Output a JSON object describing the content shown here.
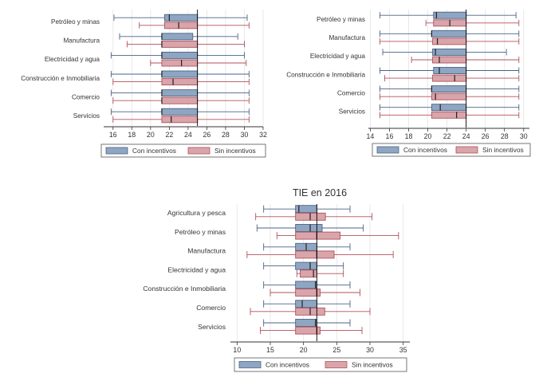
{
  "colors": {
    "con_fill": "#8fa6c3",
    "con_stroke": "#4a6384",
    "sin_fill": "#d8a5ab",
    "sin_stroke": "#b3505b",
    "axis": "#333333",
    "grid": "#e4e4e4",
    "ref_line": "#000000",
    "title": "#333333"
  },
  "chart_data": [
    {
      "type": "box",
      "title": "",
      "xlim": [
        15,
        32
      ],
      "ticks": [
        16,
        18,
        20,
        22,
        24,
        26,
        28,
        30,
        32
      ],
      "ref_line": 25,
      "legend": [
        "Con incentivos",
        "Sin incentivos"
      ],
      "categories": [
        "Petróleo y minas",
        "Manufactura",
        "Electricidad y agua",
        "Construcción e Inmobiliaria",
        "Comercio",
        "Servicios"
      ],
      "series": [
        {
          "name": "Con incentivos",
          "boxes": [
            {
              "min": 16.1,
              "q1": 21.5,
              "median": 22.0,
              "q3": 25.0,
              "max": 30.3
            },
            {
              "min": 16.7,
              "q1": 21.2,
              "median": 21.2,
              "q3": 24.5,
              "max": 29.3
            },
            {
              "min": 15.8,
              "q1": 21.2,
              "median": 21.2,
              "q3": 25.0,
              "max": 30.0
            },
            {
              "min": 15.8,
              "q1": 21.2,
              "median": 21.2,
              "q3": 25.0,
              "max": 30.5
            },
            {
              "min": 15.8,
              "q1": 21.2,
              "median": 21.2,
              "q3": 25.0,
              "max": 30.5
            },
            {
              "min": 15.8,
              "q1": 21.2,
              "median": 21.2,
              "q3": 25.0,
              "max": 30.5
            }
          ]
        },
        {
          "name": "Sin incentivos",
          "boxes": [
            {
              "min": 18.8,
              "q1": 21.5,
              "median": 23.0,
              "q3": 25.0,
              "max": 30.5
            },
            {
              "min": 17.5,
              "q1": 21.2,
              "median": 21.2,
              "q3": 25.0,
              "max": 30.0
            },
            {
              "min": 20.0,
              "q1": 21.2,
              "median": 23.3,
              "q3": 25.0,
              "max": 30.2
            },
            {
              "min": 16.0,
              "q1": 21.2,
              "median": 22.4,
              "q3": 25.0,
              "max": 30.5
            },
            {
              "min": 16.0,
              "q1": 21.2,
              "median": 21.2,
              "q3": 25.0,
              "max": 30.5
            },
            {
              "min": 16.0,
              "q1": 21.2,
              "median": 22.2,
              "q3": 25.0,
              "max": 30.5
            }
          ]
        }
      ]
    },
    {
      "type": "box",
      "title": "",
      "xlim": [
        13.8,
        30.6
      ],
      "ticks": [
        14,
        16,
        18,
        20,
        22,
        24,
        26,
        28,
        30
      ],
      "ref_line": 24,
      "legend": [
        "Con incentivos",
        "Sin incentivos"
      ],
      "categories": [
        "Petróleo y minas",
        "Manufactura",
        "Electricidad y agua",
        "Construcción e Inmobiliaria",
        "Comercio",
        "Servicios"
      ],
      "series": [
        {
          "name": "Con incentivos",
          "boxes": [
            {
              "min": 15.0,
              "q1": 20.6,
              "median": 20.9,
              "q3": 24.0,
              "max": 29.2
            },
            {
              "min": 15.0,
              "q1": 20.4,
              "median": 20.4,
              "q3": 24.0,
              "max": 29.5
            },
            {
              "min": 15.3,
              "q1": 20.5,
              "median": 20.8,
              "q3": 24.0,
              "max": 28.2
            },
            {
              "min": 15.0,
              "q1": 20.6,
              "median": 21.2,
              "q3": 24.0,
              "max": 29.5
            },
            {
              "min": 15.0,
              "q1": 20.4,
              "median": 20.4,
              "q3": 24.0,
              "max": 29.5
            },
            {
              "min": 15.0,
              "q1": 20.4,
              "median": 21.3,
              "q3": 24.0,
              "max": 29.5
            }
          ]
        },
        {
          "name": "Sin incentivos",
          "boxes": [
            {
              "min": 19.8,
              "q1": 20.6,
              "median": 22.3,
              "q3": 24.0,
              "max": 29.5
            },
            {
              "min": 15.0,
              "q1": 20.5,
              "median": 21.0,
              "q3": 24.0,
              "max": 29.5
            },
            {
              "min": 18.3,
              "q1": 20.5,
              "median": 21.2,
              "q3": 24.0,
              "max": 29.5
            },
            {
              "min": 15.5,
              "q1": 20.5,
              "median": 22.8,
              "q3": 24.0,
              "max": 29.5
            },
            {
              "min": 15.0,
              "q1": 20.4,
              "median": 20.8,
              "q3": 24.0,
              "max": 29.5
            },
            {
              "min": 15.0,
              "q1": 20.4,
              "median": 23.0,
              "q3": 24.0,
              "max": 29.5
            }
          ]
        }
      ]
    },
    {
      "type": "box",
      "title": "TIE en 2016",
      "xlim": [
        9,
        36
      ],
      "ticks": [
        10,
        15,
        20,
        25,
        30,
        35
      ],
      "ref_line": 22,
      "legend": [
        "Con incentivos",
        "Sin incentivos"
      ],
      "categories": [
        "Agricultura y pesca",
        "Petróleo y minas",
        "Manufactura",
        "Electricidad y agua",
        "Construcción e Inmobiliaria",
        "Comercio",
        "Servicios"
      ],
      "series": [
        {
          "name": "Con incentivos",
          "boxes": [
            {
              "min": 14.0,
              "q1": 18.8,
              "median": 19.3,
              "q3": 22.0,
              "max": 27.0
            },
            {
              "min": 13.0,
              "q1": 18.8,
              "median": 21.0,
              "q3": 22.8,
              "max": 29.0
            },
            {
              "min": 14.0,
              "q1": 18.8,
              "median": 20.4,
              "q3": 22.0,
              "max": 27.0
            },
            {
              "min": 14.0,
              "q1": 18.8,
              "median": 21.0,
              "q3": 22.0,
              "max": 26.0
            },
            {
              "min": 14.0,
              "q1": 18.8,
              "median": 21.8,
              "q3": 22.0,
              "max": 27.0
            },
            {
              "min": 14.0,
              "q1": 18.8,
              "median": 19.8,
              "q3": 22.0,
              "max": 27.0
            },
            {
              "min": 14.0,
              "q1": 18.8,
              "median": 21.8,
              "q3": 22.0,
              "max": 27.0
            }
          ]
        },
        {
          "name": "Sin incentivos",
          "boxes": [
            {
              "min": 12.8,
              "q1": 18.8,
              "median": 21.0,
              "q3": 23.3,
              "max": 30.3
            },
            {
              "min": 16.0,
              "q1": 18.8,
              "median": 22.0,
              "q3": 25.5,
              "max": 34.3
            },
            {
              "min": 11.5,
              "q1": 18.8,
              "median": 22.0,
              "q3": 24.6,
              "max": 33.5
            },
            {
              "min": 19.0,
              "q1": 19.5,
              "median": 21.5,
              "q3": 22.0,
              "max": 26.0
            },
            {
              "min": 15.0,
              "q1": 18.8,
              "median": 22.0,
              "q3": 22.5,
              "max": 28.5
            },
            {
              "min": 12.0,
              "q1": 18.8,
              "median": 21.0,
              "q3": 23.2,
              "max": 30.0
            },
            {
              "min": 13.5,
              "q1": 18.8,
              "median": 22.0,
              "q3": 22.5,
              "max": 28.8
            }
          ]
        }
      ]
    }
  ]
}
